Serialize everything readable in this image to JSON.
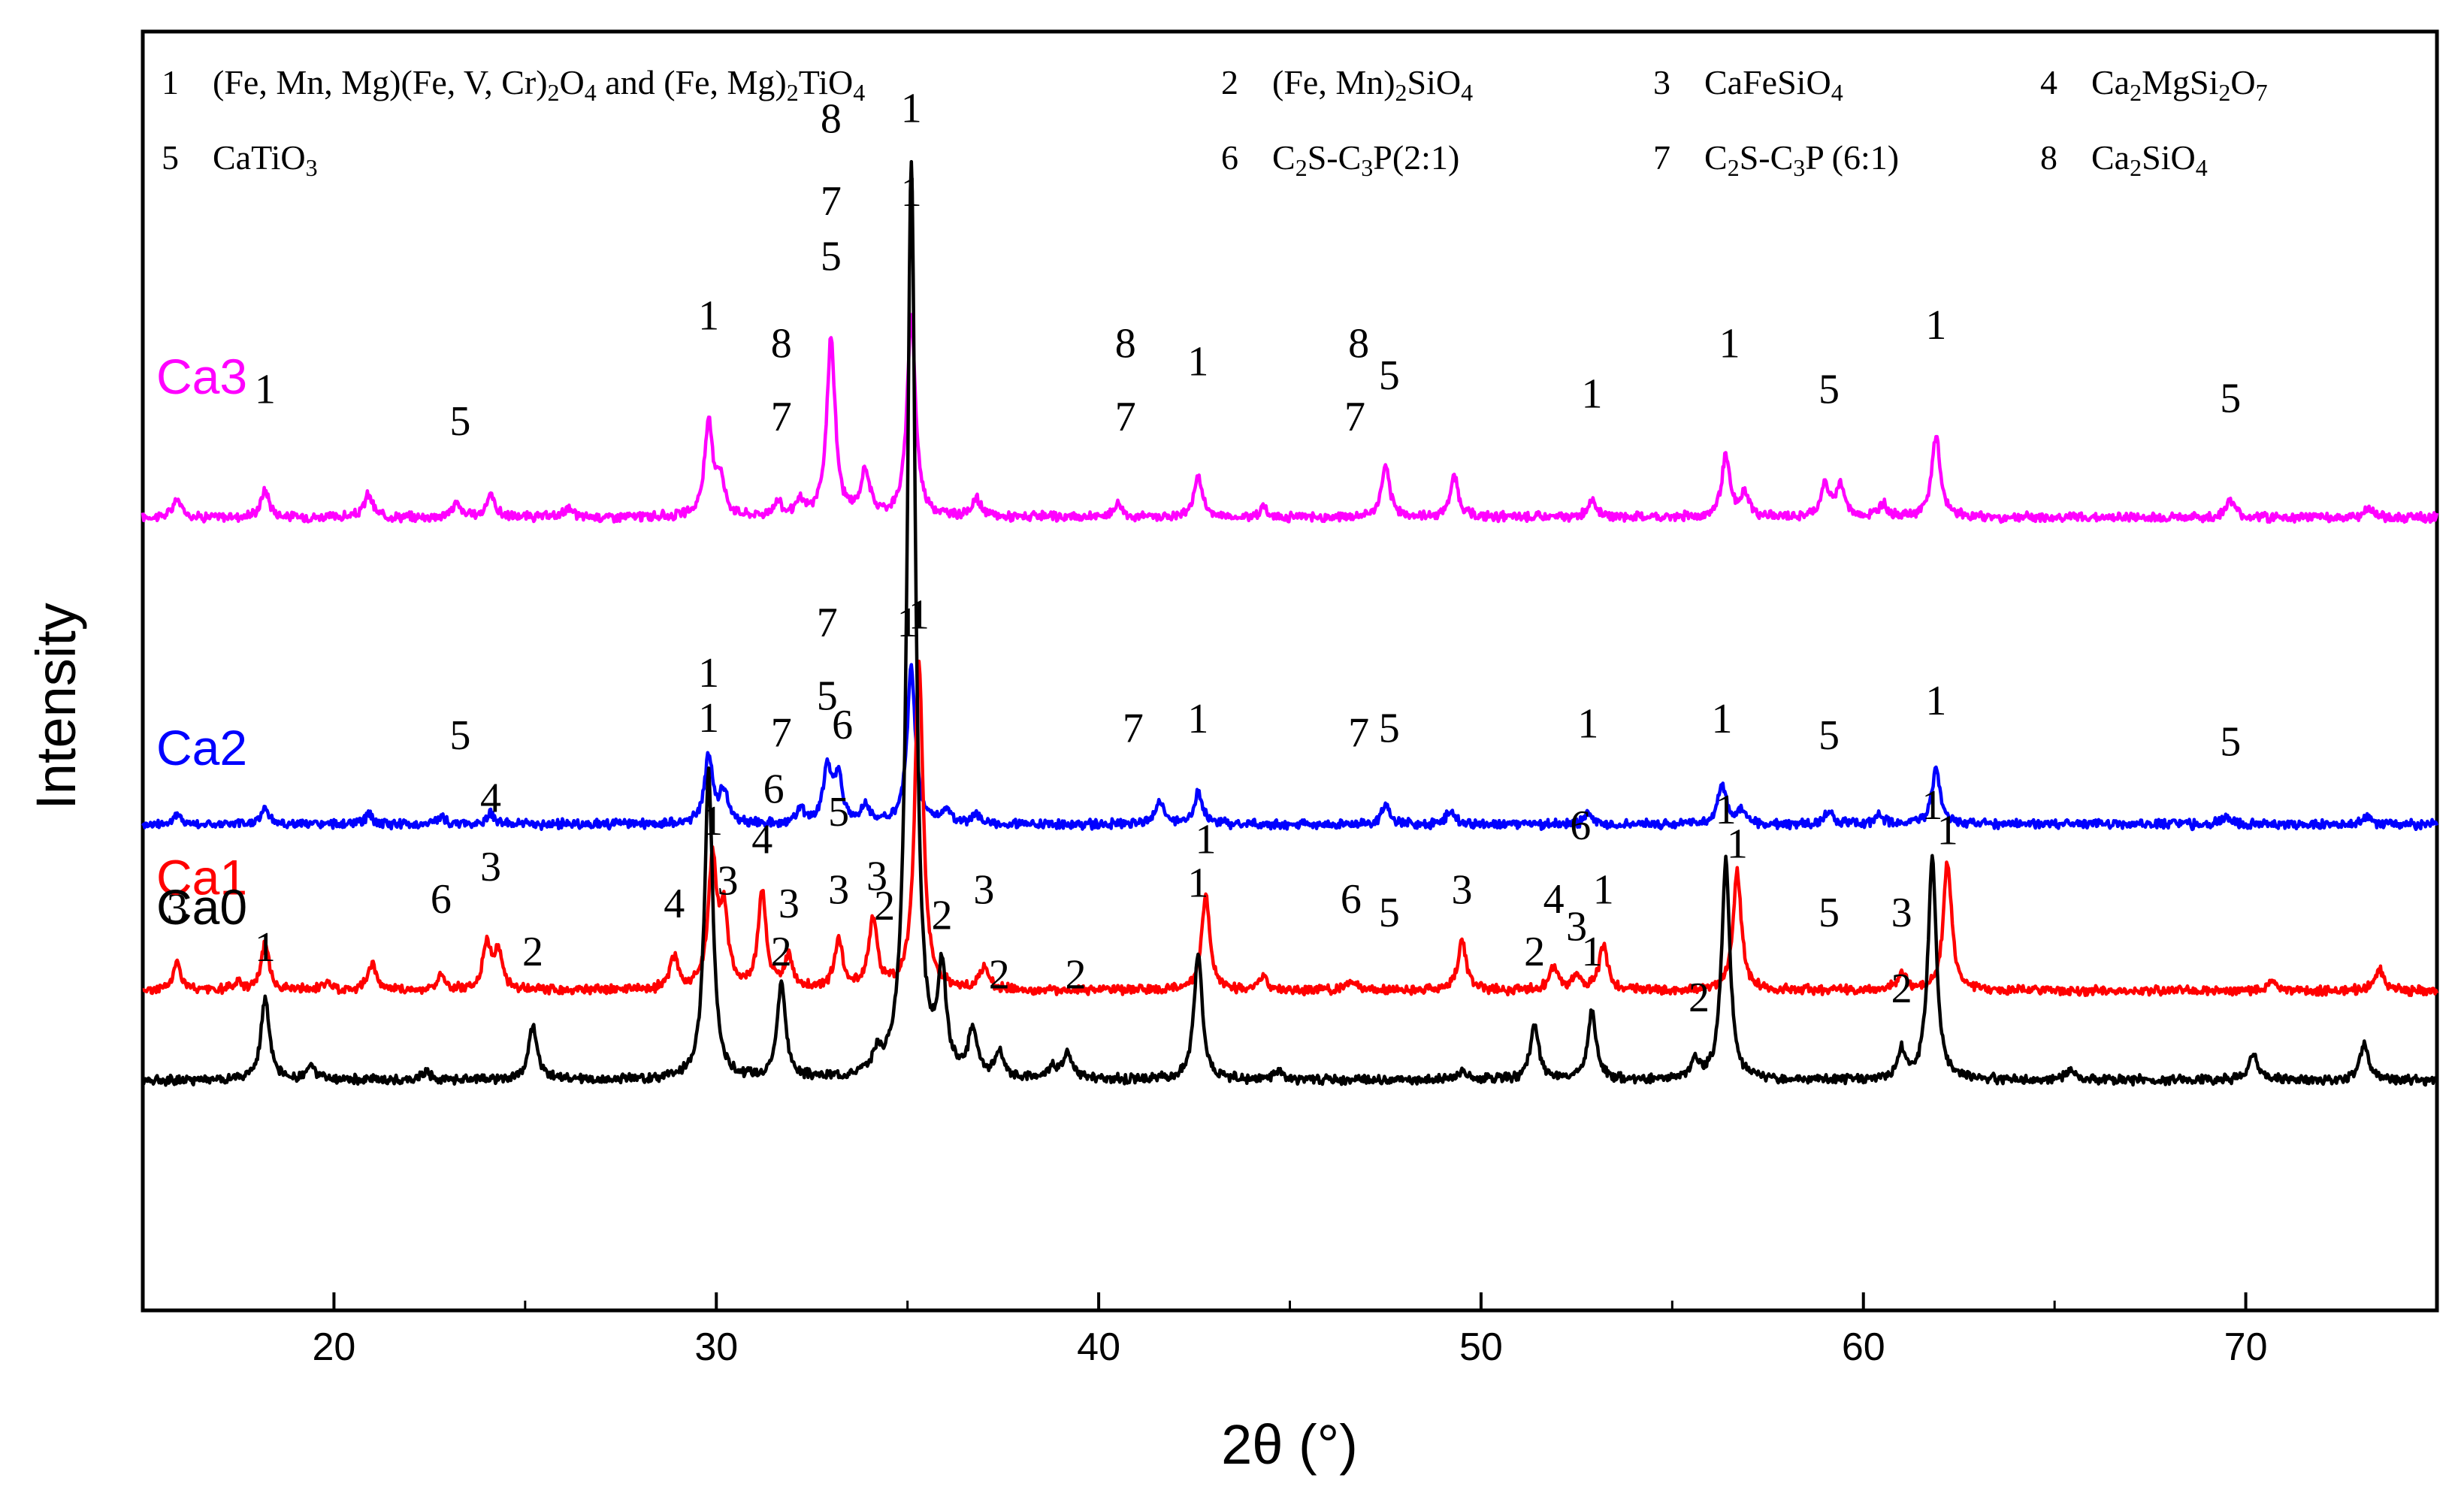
{
  "chart_data": {
    "type": "line",
    "title": "",
    "xlabel": "2θ  (°)",
    "ylabel": "Intensity",
    "xlim": [
      15,
      75
    ],
    "xticks": [
      20,
      30,
      40,
      50,
      60,
      70
    ],
    "xtick_labels": [
      "20",
      "30",
      "40",
      "50",
      "60",
      "70"
    ],
    "yticks": [],
    "grid": false,
    "legend_position": "top",
    "legend": [
      {
        "num": "1",
        "parts": [
          [
            "(Fe, Mn, Mg)(Fe, V, Cr)",
            ""
          ],
          [
            "2",
            "sub"
          ],
          [
            "O",
            ""
          ],
          [
            "4",
            "sub"
          ],
          [
            " and (Fe, Mg)",
            ""
          ],
          [
            "2",
            "sub"
          ],
          [
            "TiO",
            ""
          ],
          [
            "4",
            "sub"
          ]
        ]
      },
      {
        "num": "2",
        "parts": [
          [
            "(Fe, Mn)",
            ""
          ],
          [
            "2",
            "sub"
          ],
          [
            "SiO",
            ""
          ],
          [
            "4",
            "sub"
          ]
        ]
      },
      {
        "num": "3",
        "parts": [
          [
            "CaFeSiO",
            ""
          ],
          [
            "4",
            "sub"
          ]
        ]
      },
      {
        "num": "4",
        "parts": [
          [
            "Ca",
            ""
          ],
          [
            "2",
            "sub"
          ],
          [
            "MgSi",
            ""
          ],
          [
            "2",
            "sub"
          ],
          [
            "O",
            ""
          ],
          [
            "7",
            "sub"
          ]
        ]
      },
      {
        "num": "5",
        "parts": [
          [
            "CaTiO",
            ""
          ],
          [
            "3",
            "sub"
          ]
        ]
      },
      {
        "num": "6",
        "parts": [
          [
            "C",
            ""
          ],
          [
            "2",
            "sub"
          ],
          [
            "S-C",
            ""
          ],
          [
            "3",
            "sub"
          ],
          [
            "P(2:1)",
            ""
          ]
        ]
      },
      {
        "num": "7",
        "parts": [
          [
            "C",
            ""
          ],
          [
            "2",
            "sub"
          ],
          [
            "S-C",
            ""
          ],
          [
            "3",
            "sub"
          ],
          [
            "P (6:1)",
            ""
          ]
        ]
      },
      {
        "num": "8",
        "parts": [
          [
            "Ca",
            ""
          ],
          [
            "2",
            "sub"
          ],
          [
            "SiO",
            ""
          ],
          [
            "4",
            "sub"
          ]
        ]
      }
    ],
    "series": [
      {
        "name": "Ca3",
        "color": "#ff00ff",
        "baseline": 0.62,
        "peaks": [
          [
            15.9,
            0.2
          ],
          [
            18.2,
            0.3
          ],
          [
            20.9,
            0.25
          ],
          [
            23.2,
            0.15
          ],
          [
            24.1,
            0.25
          ],
          [
            26.1,
            0.1
          ],
          [
            29.8,
            1.0
          ],
          [
            30.1,
            0.4
          ],
          [
            31.6,
            0.15
          ],
          [
            32.2,
            0.15
          ],
          [
            33.0,
            1.95
          ],
          [
            33.9,
            0.5
          ],
          [
            35.1,
            2.2
          ],
          [
            36.8,
            0.2
          ],
          [
            40.5,
            0.15
          ],
          [
            42.6,
            0.45
          ],
          [
            44.3,
            0.1
          ],
          [
            47.5,
            0.55
          ],
          [
            49.3,
            0.45
          ],
          [
            52.9,
            0.2
          ],
          [
            56.4,
            0.65
          ],
          [
            56.9,
            0.25
          ],
          [
            59.0,
            0.35
          ],
          [
            59.4,
            0.35
          ],
          [
            60.5,
            0.15
          ],
          [
            61.9,
            0.9
          ],
          [
            69.6,
            0.2
          ],
          [
            73.2,
            0.1
          ]
        ],
        "peak_labels": [
          {
            "text": "1",
            "x": 18.2,
            "y": 1.25
          },
          {
            "text": "5",
            "x": 23.3,
            "y": 0.9
          },
          {
            "text": "1",
            "x": 29.8,
            "y": 2.05
          },
          {
            "text": "8",
            "x": 31.7,
            "y": 1.75
          },
          {
            "text": "7",
            "x": 31.7,
            "y": 0.95
          },
          {
            "text": "5",
            "x": 33.0,
            "y": 2.7
          },
          {
            "text": "7",
            "x": 33.0,
            "y": 3.3
          },
          {
            "text": "8",
            "x": 33.0,
            "y": 4.2
          },
          {
            "text": "1",
            "x": 35.1,
            "y": 3.4
          },
          {
            "text": "8",
            "x": 40.7,
            "y": 1.75
          },
          {
            "text": "7",
            "x": 40.7,
            "y": 0.95
          },
          {
            "text": "1",
            "x": 42.6,
            "y": 1.55
          },
          {
            "text": "8",
            "x": 46.8,
            "y": 1.75
          },
          {
            "text": "7",
            "x": 46.7,
            "y": 0.95
          },
          {
            "text": "5",
            "x": 47.6,
            "y": 1.4
          },
          {
            "text": "1",
            "x": 52.9,
            "y": 1.2
          },
          {
            "text": "1",
            "x": 56.5,
            "y": 1.75
          },
          {
            "text": "5",
            "x": 59.1,
            "y": 1.25
          },
          {
            "text": "1",
            "x": 61.9,
            "y": 1.95
          },
          {
            "text": "5",
            "x": 69.6,
            "y": 1.15
          }
        ]
      },
      {
        "name": "Ca2",
        "color": "#0000ff",
        "baseline": 0.38,
        "peaks": [
          [
            15.9,
            0.1
          ],
          [
            18.2,
            0.18
          ],
          [
            20.9,
            0.1
          ],
          [
            22.8,
            0.08
          ],
          [
            24.1,
            0.12
          ],
          [
            29.8,
            0.75
          ],
          [
            30.2,
            0.35
          ],
          [
            32.2,
            0.15
          ],
          [
            32.9,
            0.6
          ],
          [
            33.2,
            0.5
          ],
          [
            33.9,
            0.2
          ],
          [
            35.1,
            1.7
          ],
          [
            36.0,
            0.15
          ],
          [
            36.8,
            0.1
          ],
          [
            41.6,
            0.25
          ],
          [
            42.6,
            0.35
          ],
          [
            47.5,
            0.2
          ],
          [
            49.2,
            0.15
          ],
          [
            52.8,
            0.12
          ],
          [
            56.3,
            0.45
          ],
          [
            56.8,
            0.15
          ],
          [
            59.1,
            0.15
          ],
          [
            60.4,
            0.1
          ],
          [
            61.9,
            0.6
          ],
          [
            69.5,
            0.1
          ],
          [
            73.2,
            0.08
          ]
        ],
        "peak_labels": [
          {
            "text": "5",
            "x": 23.3,
            "y": 0.82
          },
          {
            "text": "1",
            "x": 29.8,
            "y": 1.5
          },
          {
            "text": "7",
            "x": 31.7,
            "y": 0.85
          },
          {
            "text": "5",
            "x": 32.9,
            "y": 1.25
          },
          {
            "text": "7",
            "x": 32.9,
            "y": 2.05
          },
          {
            "text": "1",
            "x": 35.0,
            "y": 2.05
          },
          {
            "text": "7",
            "x": 40.9,
            "y": 0.9
          },
          {
            "text": "1",
            "x": 42.6,
            "y": 1.0
          },
          {
            "text": "7",
            "x": 46.8,
            "y": 0.85
          },
          {
            "text": "5",
            "x": 47.6,
            "y": 0.9
          },
          {
            "text": "1",
            "x": 52.8,
            "y": 0.95
          },
          {
            "text": "1",
            "x": 56.3,
            "y": 1.0
          },
          {
            "text": "5",
            "x": 59.1,
            "y": 0.82
          },
          {
            "text": "1",
            "x": 61.9,
            "y": 1.2
          },
          {
            "text": "5",
            "x": 69.6,
            "y": 0.75
          }
        ]
      },
      {
        "name": "Ca1",
        "color": "#ff0000",
        "baseline": 0.25,
        "peaks": [
          [
            15.9,
            0.3
          ],
          [
            17.5,
            0.08
          ],
          [
            18.2,
            0.5
          ],
          [
            19.8,
            0.08
          ],
          [
            21.0,
            0.3
          ],
          [
            22.8,
            0.15
          ],
          [
            24.0,
            0.5
          ],
          [
            24.3,
            0.4
          ],
          [
            28.9,
            0.35
          ],
          [
            29.9,
            1.4
          ],
          [
            30.2,
            0.8
          ],
          [
            31.2,
            1.05
          ],
          [
            31.9,
            0.35
          ],
          [
            33.2,
            0.55
          ],
          [
            34.1,
            0.75
          ],
          [
            35.3,
            3.6
          ],
          [
            37.0,
            0.25
          ],
          [
            42.8,
            1.05
          ],
          [
            44.3,
            0.15
          ],
          [
            46.6,
            0.1
          ],
          [
            49.5,
            0.55
          ],
          [
            51.9,
            0.25
          ],
          [
            52.5,
            0.15
          ],
          [
            53.2,
            0.5
          ],
          [
            56.7,
            1.3
          ],
          [
            61.0,
            0.2
          ],
          [
            62.2,
            1.4
          ],
          [
            70.7,
            0.1
          ],
          [
            73.5,
            0.25
          ]
        ],
        "peak_labels": [
          {
            "text": "3",
            "x": 15.9,
            "y": 0.75
          },
          {
            "text": "6",
            "x": 22.8,
            "y": 0.85
          },
          {
            "text": "3",
            "x": 24.1,
            "y": 1.2
          },
          {
            "text": "4",
            "x": 24.1,
            "y": 1.95
          },
          {
            "text": "4",
            "x": 28.9,
            "y": 0.8
          },
          {
            "text": "1",
            "x": 29.9,
            "y": 1.7
          },
          {
            "text": "3",
            "x": 30.3,
            "y": 1.05
          },
          {
            "text": "6",
            "x": 31.5,
            "y": 2.05
          },
          {
            "text": "4",
            "x": 31.2,
            "y": 1.5
          },
          {
            "text": "3",
            "x": 31.9,
            "y": 0.8
          },
          {
            "text": "3",
            "x": 33.2,
            "y": 0.95
          },
          {
            "text": "5",
            "x": 33.2,
            "y": 1.8
          },
          {
            "text": "6",
            "x": 33.3,
            "y": 2.75
          },
          {
            "text": "3",
            "x": 34.2,
            "y": 1.1
          },
          {
            "text": "1",
            "x": 35.3,
            "y": 3.95
          },
          {
            "text": "3",
            "x": 37.0,
            "y": 0.95
          },
          {
            "text": "1",
            "x": 42.8,
            "y": 1.5
          },
          {
            "text": "6",
            "x": 46.6,
            "y": 0.85
          },
          {
            "text": "5",
            "x": 47.6,
            "y": 0.7
          },
          {
            "text": "3",
            "x": 49.5,
            "y": 0.95
          },
          {
            "text": "4",
            "x": 51.9,
            "y": 0.85
          },
          {
            "text": "6",
            "x": 52.6,
            "y": 1.65
          },
          {
            "text": "3",
            "x": 52.5,
            "y": 0.55
          },
          {
            "text": "1",
            "x": 53.2,
            "y": 0.95
          },
          {
            "text": "1",
            "x": 56.7,
            "y": 1.45
          },
          {
            "text": "5",
            "x": 59.1,
            "y": 0.7
          },
          {
            "text": "3",
            "x": 61.0,
            "y": 0.7
          },
          {
            "text": "1",
            "x": 62.2,
            "y": 1.6
          }
        ]
      },
      {
        "name": "Ca0",
        "color": "#000000",
        "baseline": 0.18,
        "peaks": [
          [
            18.2,
            0.9
          ],
          [
            19.4,
            0.15
          ],
          [
            22.4,
            0.1
          ],
          [
            25.2,
            0.6
          ],
          [
            29.8,
            3.35
          ],
          [
            31.7,
            1.05
          ],
          [
            34.2,
            0.2
          ],
          [
            35.1,
            10.0
          ],
          [
            35.9,
            1.1
          ],
          [
            36.7,
            0.5
          ],
          [
            37.4,
            0.25
          ],
          [
            38.8,
            0.15
          ],
          [
            39.2,
            0.3
          ],
          [
            42.6,
            1.4
          ],
          [
            44.7,
            0.1
          ],
          [
            49.5,
            0.1
          ],
          [
            51.4,
            0.6
          ],
          [
            52.9,
            0.75
          ],
          [
            55.6,
            0.2
          ],
          [
            56.4,
            2.4
          ],
          [
            61.0,
            0.3
          ],
          [
            61.8,
            2.45
          ],
          [
            65.4,
            0.1
          ],
          [
            70.2,
            0.3
          ],
          [
            73.1,
            0.4
          ]
        ],
        "peak_labels": [
          {
            "text": "1",
            "x": 18.2,
            "y": 1.3
          },
          {
            "text": "2",
            "x": 25.2,
            "y": 1.25
          },
          {
            "text": "1",
            "x": 29.8,
            "y": 3.8
          },
          {
            "text": "2",
            "x": 31.7,
            "y": 1.25
          },
          {
            "text": "2",
            "x": 34.4,
            "y": 1.75
          },
          {
            "text": "1",
            "x": 35.1,
            "y": 10.45
          },
          {
            "text": "2",
            "x": 35.9,
            "y": 1.65
          },
          {
            "text": "2",
            "x": 37.4,
            "y": 1.0
          },
          {
            "text": "2",
            "x": 39.4,
            "y": 1.0
          },
          {
            "text": "1",
            "x": 42.6,
            "y": 2.0
          },
          {
            "text": "2",
            "x": 51.4,
            "y": 1.25
          },
          {
            "text": "1",
            "x": 52.9,
            "y": 1.25
          },
          {
            "text": "2",
            "x": 55.7,
            "y": 0.75
          },
          {
            "text": "1",
            "x": 56.4,
            "y": 2.8
          },
          {
            "text": "2",
            "x": 61.0,
            "y": 0.85
          },
          {
            "text": "1",
            "x": 61.8,
            "y": 2.85
          }
        ]
      }
    ]
  }
}
